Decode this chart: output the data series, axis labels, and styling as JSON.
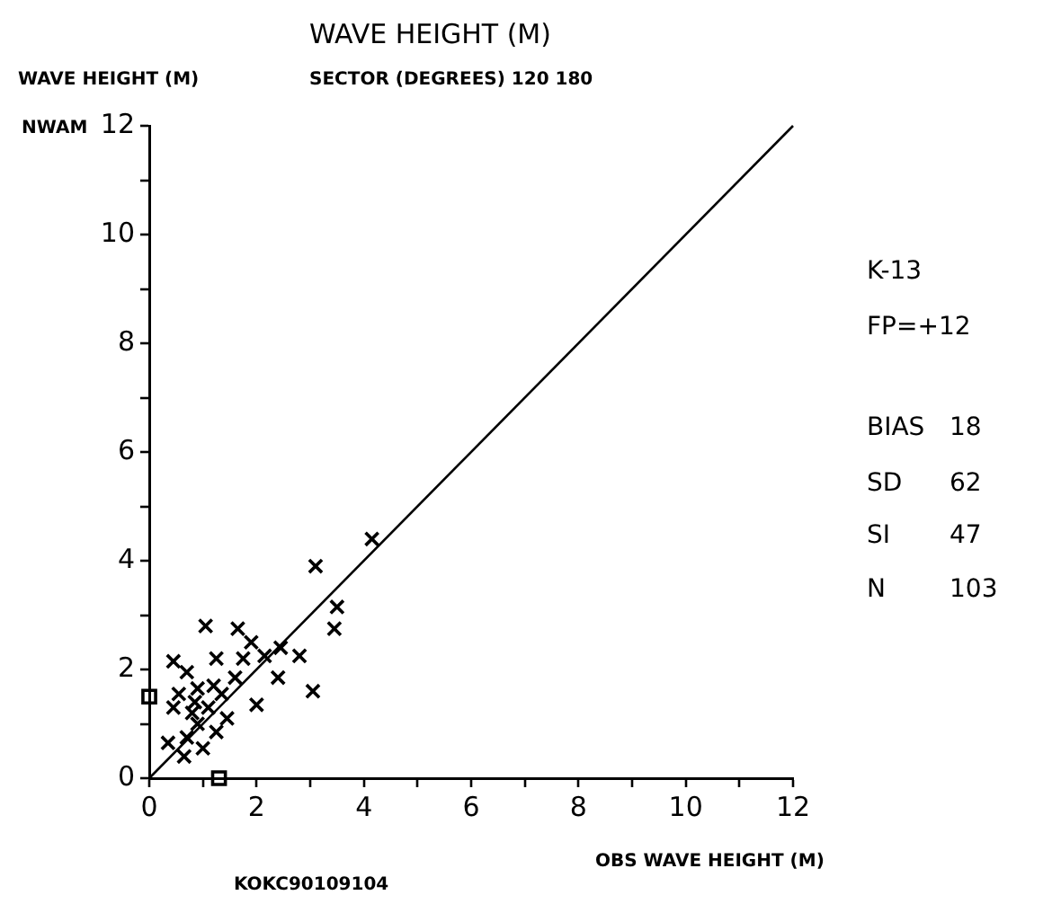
{
  "chart_data": {
    "type": "scatter",
    "title": "WAVE HEIGHT (M)",
    "subtitle": "SECTOR (DEGREES) 120 180",
    "xlabel": "OBS WAVE HEIGHT (M)",
    "ylabel": "NWAM",
    "annotations": [
      "WAVE HEIGHT (M)",
      "K-13",
      "FP=+12",
      "BIAS 18",
      "SD 62",
      "SI 47",
      "N 103",
      "KOKC90109104"
    ],
    "xlim": [
      0,
      12
    ],
    "ylim": [
      0,
      12
    ],
    "xticks": [
      0,
      {
        "value": 1,
        "label": null
      },
      2,
      {
        "value": 3,
        "label": null
      },
      4,
      {
        "value": 5,
        "label": null
      },
      6,
      {
        "value": 7,
        "label": null
      },
      8,
      {
        "value": 9,
        "label": null
      },
      10,
      {
        "value": 11,
        "label": null
      },
      12
    ],
    "yticks": [
      0,
      {
        "value": 1,
        "label": null
      },
      2,
      {
        "value": 3,
        "label": null
      },
      4,
      {
        "value": 5,
        "label": null
      },
      6,
      {
        "value": 7,
        "label": null
      },
      8,
      {
        "value": 9,
        "label": null
      },
      10,
      {
        "value": 11,
        "label": null
      },
      12
    ],
    "grid": false,
    "legend": false,
    "series": [
      {
        "type": "scatter",
        "marker": "cross",
        "color": "#000000",
        "x": [
          4.15,
          3.1,
          3.5,
          3.45,
          3.05,
          2.4,
          2.0,
          2.45,
          1.9,
          1.65,
          1.05,
          2.8,
          1.6,
          1.25,
          0.45,
          0.7,
          0.9,
          0.55,
          0.35,
          0.65,
          1.0,
          1.25,
          0.9,
          0.8,
          1.1,
          1.35,
          1.45,
          0.7,
          1.2,
          1.75,
          2.15,
          0.85,
          0.45
        ],
        "values": [
          4.4,
          3.9,
          3.15,
          2.75,
          1.6,
          1.85,
          1.35,
          2.4,
          2.5,
          2.75,
          2.8,
          2.25,
          1.85,
          2.2,
          2.15,
          1.95,
          1.65,
          1.55,
          0.65,
          0.4,
          0.55,
          0.85,
          1.0,
          1.2,
          1.3,
          1.55,
          1.1,
          0.75,
          1.7,
          2.2,
          2.25,
          1.4,
          1.3
        ]
      },
      {
        "type": "scatter",
        "marker": "square",
        "color": "#000000",
        "x": [
          0,
          1.3
        ],
        "values": [
          1.5,
          0
        ]
      },
      {
        "type": "line",
        "marker": "none",
        "color": "#000000",
        "x": [
          0,
          12
        ],
        "values": [
          0,
          12
        ]
      }
    ]
  }
}
